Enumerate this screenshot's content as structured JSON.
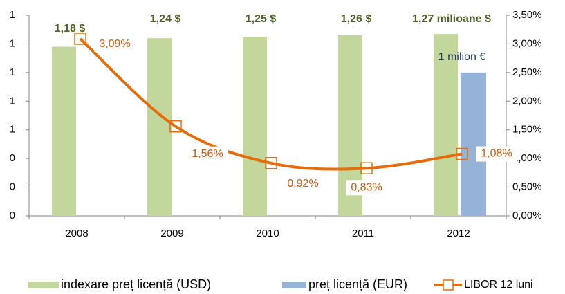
{
  "chart_data": {
    "type": "bar",
    "categories": [
      "2008",
      "2009",
      "2010",
      "2011",
      "2012"
    ],
    "series": [
      {
        "name": "indexare preț licență (USD)",
        "color": "#c3d69b",
        "values": [
          1.18,
          1.24,
          1.25,
          1.26,
          1.27
        ],
        "value_labels": [
          "1,18 $",
          "1,24 $",
          "1,25 $",
          "1,26 $",
          "1,27 milioane $"
        ]
      },
      {
        "name": "preț licență (EUR)",
        "color": "#95b3d7",
        "values": [
          null,
          null,
          null,
          null,
          1
        ],
        "value_labels": [
          null,
          null,
          null,
          null,
          "1 milion €"
        ]
      },
      {
        "name": "LIBOR 12 luni",
        "type": "line",
        "axis": "y2",
        "color": "#e46c0a",
        "values": [
          3.09,
          1.56,
          0.92,
          0.83,
          1.08
        ],
        "value_labels": [
          "3,09%",
          "1,56%",
          "0,92%",
          "0,83%",
          "1,08%"
        ]
      }
    ],
    "ylim": [
      0,
      1.4
    ],
    "yticks": [
      0,
      {
        "value": 0.2,
        "label": "0"
      },
      {
        "value": 0.4,
        "label": "0"
      },
      {
        "value": 0.6,
        "label": "1"
      },
      {
        "value": 0.8,
        "label": "1"
      },
      1,
      {
        "value": 1.2,
        "label": "1"
      },
      {
        "value": 1.4,
        "label": "1"
      }
    ],
    "y2lim": [
      0,
      3.5
    ],
    "y2ticks": [
      {
        "value": 0,
        "label": "0,00%"
      },
      {
        "value": 0.5,
        "label": "0,50%"
      },
      {
        "value": 1,
        "label": "1,00%"
      },
      {
        "value": 1.5,
        "label": "1,50%"
      },
      {
        "value": 2,
        "label": "2,00%"
      },
      {
        "value": 2.5,
        "label": "2,50%"
      },
      {
        "value": 3,
        "label": "3,00%"
      },
      {
        "value": 3.5,
        "label": "3,50%"
      }
    ],
    "legend": "bottom"
  }
}
